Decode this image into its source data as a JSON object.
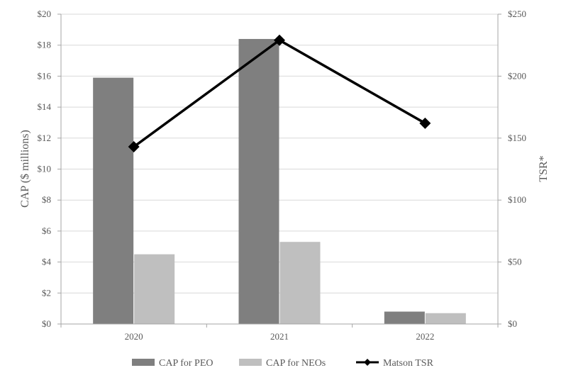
{
  "chart_data": {
    "type": "bar",
    "categories": [
      "2020",
      "2021",
      "2022"
    ],
    "series": [
      {
        "name": "CAP for PEO",
        "kind": "bar",
        "axis": "left",
        "values": [
          15.9,
          18.4,
          0.8
        ]
      },
      {
        "name": "CAP for NEOs",
        "kind": "bar",
        "axis": "left",
        "values": [
          4.5,
          5.3,
          0.7
        ]
      },
      {
        "name": "Matson TSR",
        "kind": "line",
        "axis": "right",
        "values": [
          143,
          229,
          162
        ]
      }
    ],
    "y_left": {
      "label": "CAP ($ millions)",
      "ylim": [
        0,
        20
      ],
      "ticks": [
        "$0",
        "$2",
        "$4",
        "$6",
        "$8",
        "$10",
        "$12",
        "$14",
        "$16",
        "$18",
        "$20"
      ]
    },
    "y_right": {
      "label": "TSR*",
      "ylim": [
        0,
        250
      ],
      "ticks": [
        "$0",
        "$50",
        "$100",
        "$150",
        "$200",
        "$250"
      ]
    },
    "grid": true,
    "legend_position": "bottom",
    "colors": {
      "CAP for PEO": "#7f7f7f",
      "CAP for NEOs": "#bfbfbf",
      "Matson TSR": "#000000",
      "grid": "#d9d9d9",
      "text": "#595959"
    }
  }
}
